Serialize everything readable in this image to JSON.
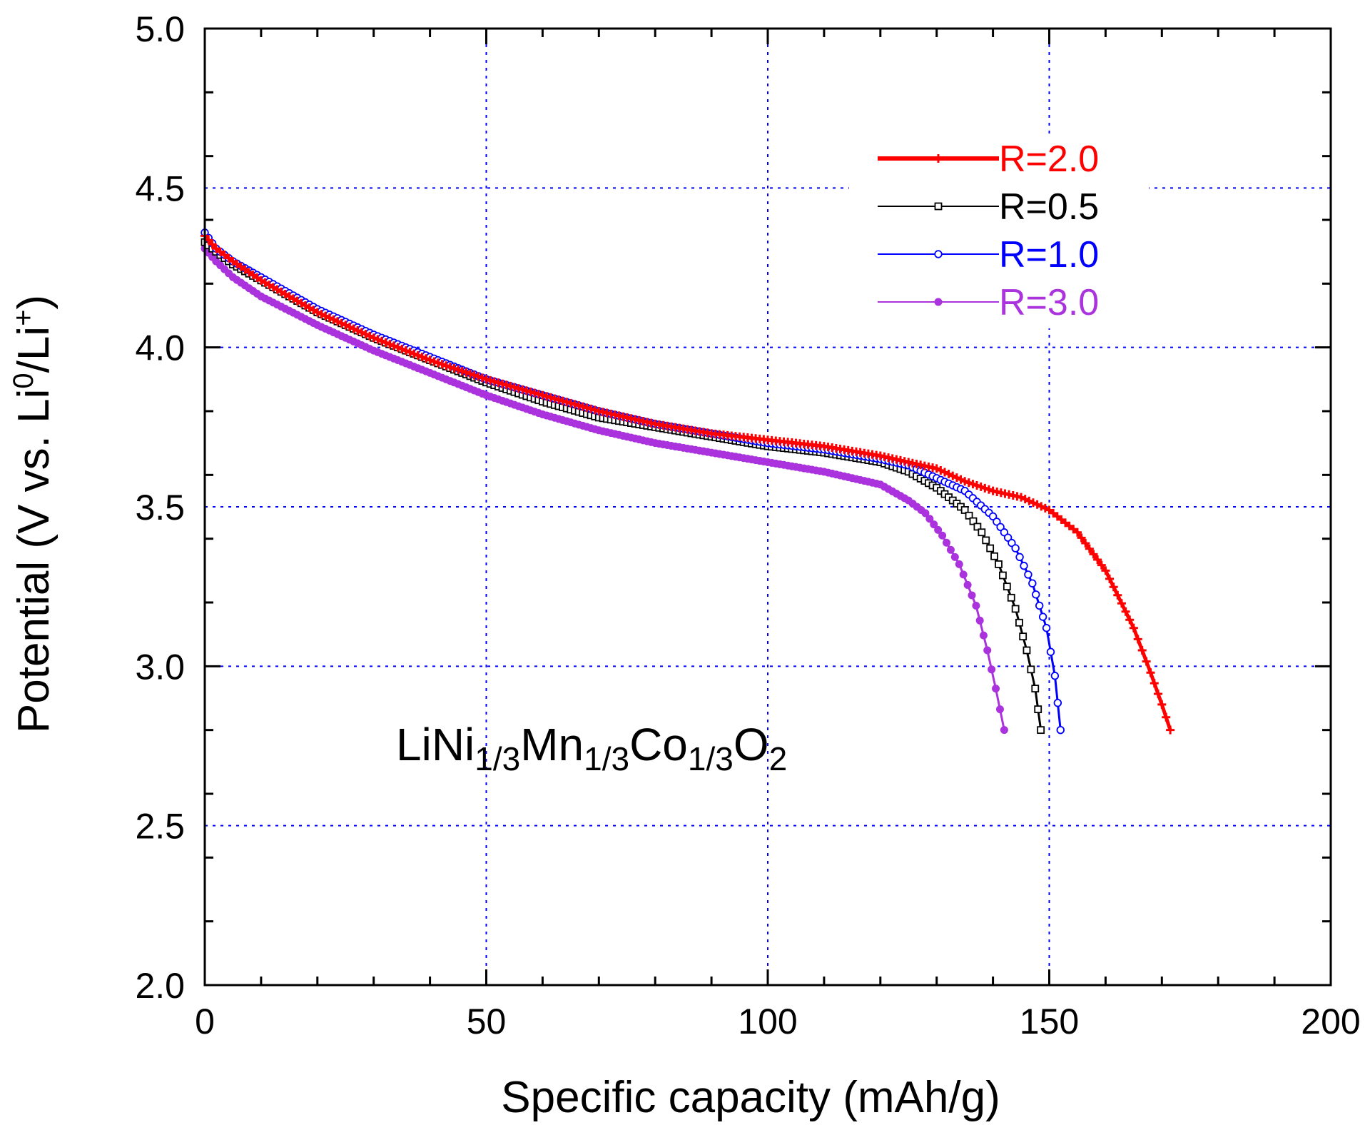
{
  "chart_data": {
    "type": "line",
    "title": "",
    "xlabel": "Specific capacity (mAh/g)",
    "ylabel": {
      "main": "Potential (V vs. Li",
      "sup1": "0",
      "mid": "/Li",
      "sup2": "+",
      "end": ")"
    },
    "xlim": [
      0,
      200
    ],
    "ylim": [
      2.0,
      5.0
    ],
    "xticks": [
      0,
      50,
      100,
      150,
      200
    ],
    "xtick_labels": [
      "0",
      "50",
      "100",
      "150",
      "200"
    ],
    "yticks": [
      2.0,
      2.5,
      3.0,
      3.5,
      4.0,
      4.5,
      5.0
    ],
    "ytick_labels": [
      "2.0",
      "2.5",
      "3.0",
      "3.5",
      "4.0",
      "4.5",
      "5.0"
    ],
    "grid": true,
    "legend_position": "top-right",
    "annotation": {
      "parts": [
        {
          "text": "LiNi",
          "sub": false
        },
        {
          "text": "1/3",
          "sub": true
        },
        {
          "text": "Mn",
          "sub": false
        },
        {
          "text": "1/3",
          "sub": true
        },
        {
          "text": "Co",
          "sub": false
        },
        {
          "text": "1/3",
          "sub": true
        },
        {
          "text": "O",
          "sub": false
        },
        {
          "text": "2",
          "sub": true
        }
      ]
    },
    "series": [
      {
        "name": "R=2.0",
        "color": "#ff0000",
        "marker": "plus",
        "x": [
          0,
          2,
          5,
          10,
          20,
          30,
          40,
          50,
          60,
          70,
          80,
          90,
          100,
          110,
          120,
          125,
          130,
          135,
          140,
          145,
          150,
          155,
          160,
          165,
          168,
          170,
          171.5
        ],
        "y": [
          4.35,
          4.31,
          4.27,
          4.21,
          4.11,
          4.03,
          3.96,
          3.9,
          3.85,
          3.8,
          3.76,
          3.73,
          3.71,
          3.69,
          3.66,
          3.64,
          3.62,
          3.58,
          3.55,
          3.53,
          3.49,
          3.42,
          3.3,
          3.12,
          2.98,
          2.88,
          2.8
        ]
      },
      {
        "name": "R=0.5",
        "color": "#000000",
        "marker": "square",
        "x": [
          0,
          2,
          5,
          10,
          20,
          30,
          40,
          50,
          60,
          70,
          80,
          90,
          100,
          110,
          120,
          125,
          130,
          135,
          138,
          141,
          144,
          146,
          147.5,
          148.5
        ],
        "y": [
          4.33,
          4.3,
          4.26,
          4.21,
          4.11,
          4.03,
          3.96,
          3.89,
          3.83,
          3.78,
          3.75,
          3.72,
          3.69,
          3.67,
          3.64,
          3.61,
          3.56,
          3.49,
          3.42,
          3.32,
          3.18,
          3.05,
          2.93,
          2.8
        ]
      },
      {
        "name": "R=1.0",
        "color": "#0000ff",
        "marker": "circle",
        "x": [
          0,
          2,
          5,
          10,
          20,
          30,
          40,
          50,
          60,
          70,
          80,
          90,
          100,
          110,
          120,
          125,
          130,
          135,
          140,
          144,
          147,
          149.5,
          151,
          152
        ],
        "y": [
          4.36,
          4.31,
          4.27,
          4.22,
          4.12,
          4.04,
          3.97,
          3.9,
          3.85,
          3.8,
          3.76,
          3.73,
          3.7,
          3.68,
          3.65,
          3.63,
          3.59,
          3.55,
          3.47,
          3.37,
          3.26,
          3.12,
          2.97,
          2.8
        ]
      },
      {
        "name": "R=3.0",
        "color": "#aa33dd",
        "marker": "dot",
        "x": [
          0,
          2,
          5,
          10,
          20,
          30,
          40,
          50,
          60,
          70,
          80,
          90,
          100,
          110,
          120,
          125,
          128,
          131,
          134,
          137,
          139,
          140.5,
          142
        ],
        "y": [
          4.31,
          4.27,
          4.22,
          4.16,
          4.07,
          3.99,
          3.92,
          3.85,
          3.79,
          3.74,
          3.7,
          3.67,
          3.64,
          3.61,
          3.57,
          3.52,
          3.48,
          3.41,
          3.32,
          3.19,
          3.05,
          2.93,
          2.8
        ]
      }
    ]
  }
}
